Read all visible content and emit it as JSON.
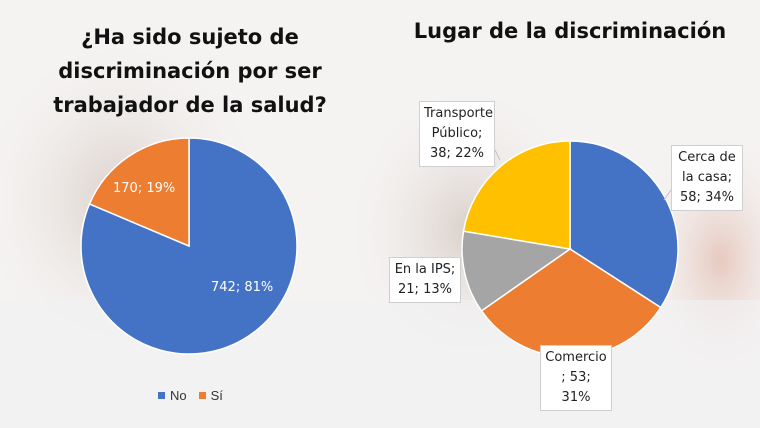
{
  "chart_data": [
    {
      "type": "pie",
      "title": "¿Ha sido sujeto de discriminación por ser trabajador de la salud?",
      "title_lines": [
        "¿Ha sido sujeto de",
        "discriminación por ser",
        "trabajador de la salud?"
      ],
      "categories": [
        "No",
        "Sí"
      ],
      "values": [
        742,
        170
      ],
      "percents": [
        81,
        19
      ],
      "labels": [
        "742; 81%",
        "170; 19%"
      ],
      "colors": [
        "#4472c4",
        "#ed7d31"
      ],
      "legend": {
        "position": "bottom",
        "entries": [
          "No",
          "Sí"
        ]
      }
    },
    {
      "type": "pie",
      "title": "Lugar de la discriminación",
      "categories": [
        "Cerca de la casa",
        "Comercio",
        "En la IPS",
        "Transporte Público"
      ],
      "values": [
        58,
        53,
        21,
        38
      ],
      "percents": [
        34,
        31,
        13,
        22
      ],
      "label_lines": [
        [
          "Cerca de",
          "la casa;",
          "58; 34%"
        ],
        [
          "Comercio",
          "; 53; 31%"
        ],
        [
          "En la IPS;",
          "21; 13%"
        ],
        [
          "Transporte",
          "Público;",
          "38; 22%"
        ]
      ],
      "colors": [
        "#4472c4",
        "#ed7d31",
        "#a5a5a5",
        "#ffc000"
      ]
    }
  ]
}
